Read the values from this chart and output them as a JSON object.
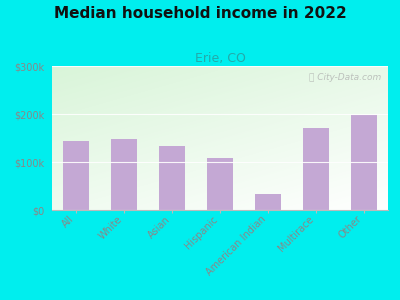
{
  "title": "Median household income in 2022",
  "subtitle": "Erie, CO",
  "categories": [
    "All",
    "White",
    "Asian",
    "Hispanic",
    "American Indian",
    "Multirace",
    "Other"
  ],
  "values": [
    143000,
    147000,
    133000,
    108000,
    33000,
    170000,
    197000
  ],
  "bar_color": "#c4a8d4",
  "background_outer": "#00EEEE",
  "title_color": "#111111",
  "subtitle_color": "#22aaaa",
  "tick_label_color": "#888888",
  "watermark": "City-Data.com",
  "ylim": [
    0,
    300000
  ],
  "yticks": [
    0,
    100000,
    200000,
    300000
  ],
  "ytick_labels": [
    "$0",
    "$100k",
    "$200k",
    "$300k"
  ]
}
